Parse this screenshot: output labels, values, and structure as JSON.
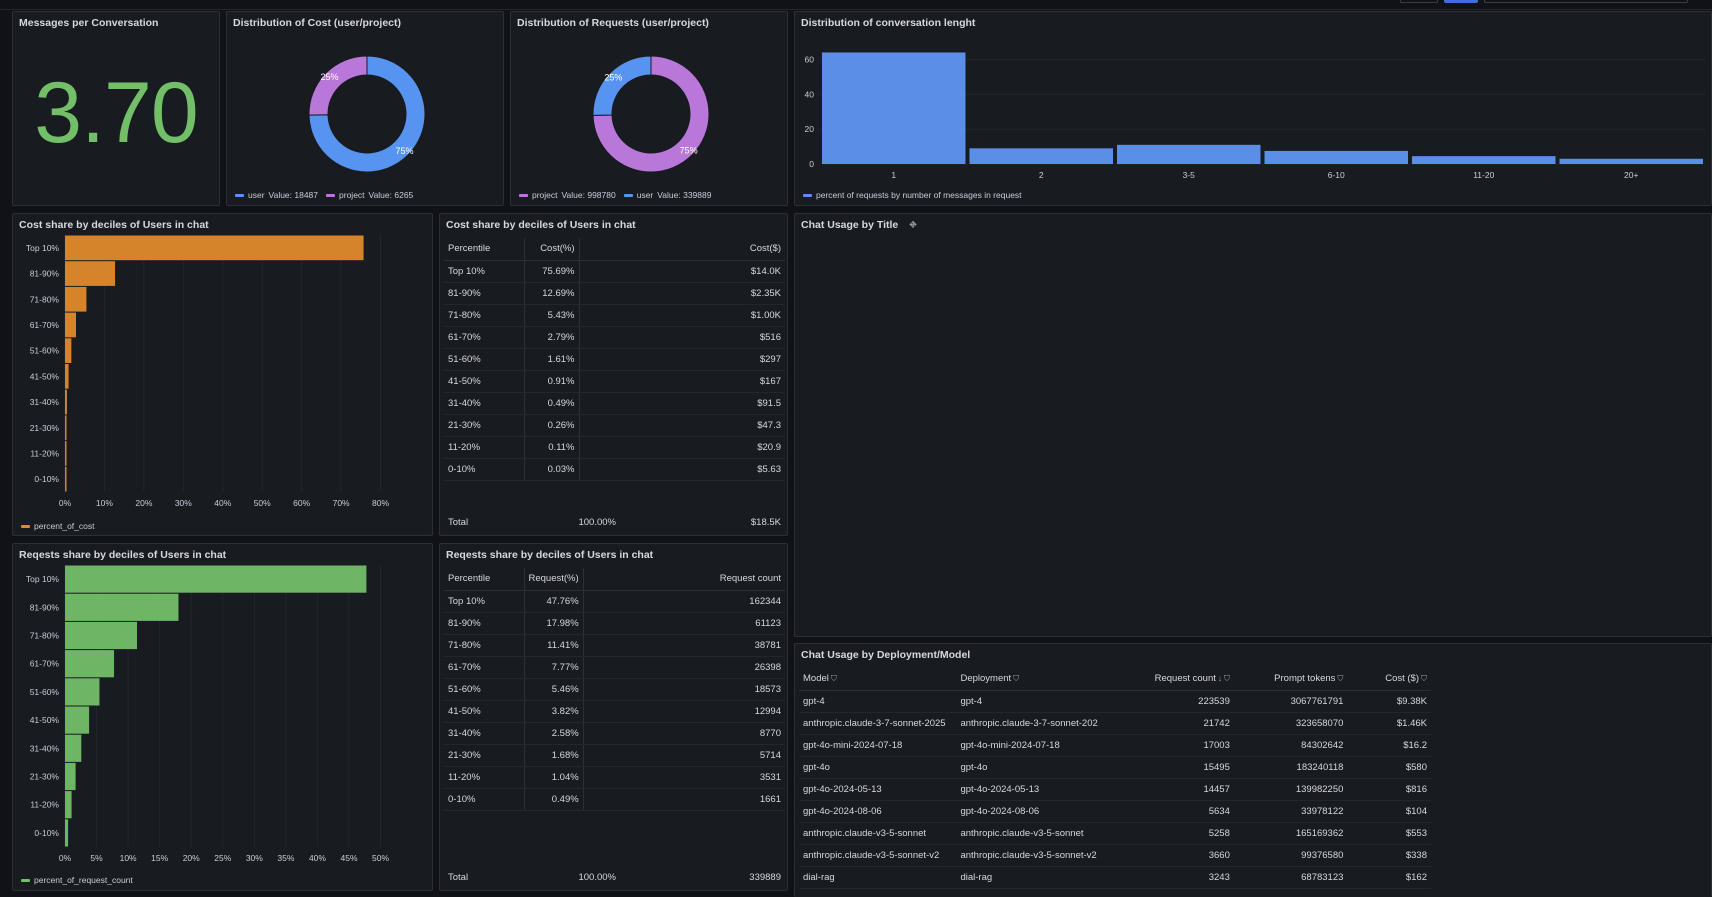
{
  "messages_per_conversation": {
    "title": "Messages per Conversation",
    "value": "3.70"
  },
  "cost_donut": {
    "title": "Distribution of Cost (user/project)",
    "slices": [
      {
        "name": "user",
        "value": 18487,
        "pct": "75%",
        "color": "#5794f2"
      },
      {
        "name": "project",
        "value": 6265,
        "pct": "25%",
        "color": "#b877d9"
      }
    ],
    "legend": [
      {
        "label": "user",
        "value_text": "Value: 18487",
        "color": "#5794f2"
      },
      {
        "label": "project",
        "value_text": "Value: 6265",
        "color": "#b877d9"
      }
    ]
  },
  "requests_donut": {
    "title": "Distribution of Requests (user/project)",
    "slices": [
      {
        "name": "project",
        "value": 998780,
        "pct": "75%",
        "color": "#b877d9"
      },
      {
        "name": "user",
        "value": 339889,
        "pct": "25%",
        "color": "#5794f2"
      }
    ],
    "legend": [
      {
        "label": "project",
        "value_text": "Value: 998780",
        "color": "#b877d9"
      },
      {
        "label": "user",
        "value_text": "Value: 339889",
        "color": "#5794f2"
      }
    ]
  },
  "conv_length": {
    "title": "Distribution of conversation lenght",
    "legend": "percent of requests by number of messages in request",
    "color": "#5b8ee6"
  },
  "cost_bar": {
    "title": "Cost share by deciles of Users in chat",
    "legend": "percent_of_cost",
    "color": "#e08a2c",
    "x_ticks": [
      "0%",
      "10%",
      "20%",
      "30%",
      "40%",
      "50%",
      "60%",
      "70%",
      "80%"
    ]
  },
  "cost_table": {
    "title": "Cost share by deciles of Users in chat",
    "headers": [
      "Percentile",
      "Cost(%)",
      "Cost($)"
    ],
    "rows": [
      [
        "Top 10%",
        "75.69%",
        "$14.0K"
      ],
      [
        "81-90%",
        "12.69%",
        "$2.35K"
      ],
      [
        "71-80%",
        "5.43%",
        "$1.00K"
      ],
      [
        "61-70%",
        "2.79%",
        "$516"
      ],
      [
        "51-60%",
        "1.61%",
        "$297"
      ],
      [
        "41-50%",
        "0.91%",
        "$167"
      ],
      [
        "31-40%",
        "0.49%",
        "$91.5"
      ],
      [
        "21-30%",
        "0.26%",
        "$47.3"
      ],
      [
        "11-20%",
        "0.11%",
        "$20.9"
      ],
      [
        "0-10%",
        "0.03%",
        "$5.63"
      ]
    ],
    "total": [
      "Total",
      "100.00%",
      "$18.5K"
    ]
  },
  "req_bar": {
    "title": "Reqests share by deciles of Users in chat",
    "legend": "percent_of_request_count",
    "color": "#73bf69",
    "x_ticks": [
      "0%",
      "5%",
      "10%",
      "15%",
      "20%",
      "25%",
      "30%",
      "35%",
      "40%",
      "45%",
      "50%"
    ]
  },
  "req_table": {
    "title": "Reqests share by deciles of Users in chat",
    "headers": [
      "Percentile",
      "Request(%)",
      "Request count"
    ],
    "rows": [
      [
        "Top 10%",
        "47.76%",
        "162344"
      ],
      [
        "81-90%",
        "17.98%",
        "61123"
      ],
      [
        "71-80%",
        "11.41%",
        "38781"
      ],
      [
        "61-70%",
        "7.77%",
        "26398"
      ],
      [
        "51-60%",
        "5.46%",
        "18573"
      ],
      [
        "41-50%",
        "3.82%",
        "12994"
      ],
      [
        "31-40%",
        "2.58%",
        "8770"
      ],
      [
        "21-30%",
        "1.68%",
        "5714"
      ],
      [
        "11-20%",
        "1.04%",
        "3531"
      ],
      [
        "0-10%",
        "0.49%",
        "1661"
      ]
    ],
    "total": [
      "Total",
      "100.00%",
      "339889"
    ]
  },
  "chat_usage_title": {
    "title": "Chat Usage by Title",
    "icon": "link-off-icon"
  },
  "deployment_table": {
    "title": "Chat Usage by Deployment/Model",
    "headers": [
      "Model",
      "Deployment",
      "Request count",
      "Prompt tokens",
      "Cost ($)"
    ],
    "sort_indicator": "↓",
    "rows": [
      [
        "gpt-4",
        "gpt-4",
        "223539",
        "3067761791",
        "$9.38K"
      ],
      [
        "anthropic.claude-3-7-sonnet-2025",
        "anthropic.claude-3-7-sonnet-202",
        "21742",
        "323658070",
        "$1.46K"
      ],
      [
        "gpt-4o-mini-2024-07-18",
        "gpt-4o-mini-2024-07-18",
        "17003",
        "84302642",
        "$16.2"
      ],
      [
        "gpt-4o",
        "gpt-4o",
        "15495",
        "183240118",
        "$580"
      ],
      [
        "gpt-4o-2024-05-13",
        "gpt-4o-2024-05-13",
        "14457",
        "139982250",
        "$816"
      ],
      [
        "gpt-4o-2024-08-06",
        "gpt-4o-2024-08-06",
        "5634",
        "33978122",
        "$104"
      ],
      [
        "anthropic.claude-v3-5-sonnet",
        "anthropic.claude-v3-5-sonnet",
        "5258",
        "165169362",
        "$553"
      ],
      [
        "anthropic.claude-v3-5-sonnet-v2",
        "anthropic.claude-v3-5-sonnet-v2",
        "3660",
        "99376580",
        "$338"
      ],
      [
        "dial-rag",
        "dial-rag",
        "3243",
        "68783123",
        "$162"
      ]
    ]
  },
  "chart_data": [
    {
      "type": "bar",
      "title": "Distribution of conversation lenght",
      "categories": [
        "1",
        "2",
        "3-5",
        "6-10",
        "11-20",
        "20+"
      ],
      "series": [
        {
          "name": "percent of requests by number of messages in request",
          "values": [
            64,
            9,
            11,
            7.5,
            4.5,
            3
          ]
        }
      ],
      "ylim": [
        0,
        70
      ],
      "y_ticks": [
        0,
        20,
        40,
        60
      ]
    },
    {
      "type": "bar",
      "orientation": "horizontal",
      "title": "Cost share by deciles of Users in chat",
      "categories": [
        "Top 10%",
        "81-90%",
        "71-80%",
        "61-70%",
        "51-60%",
        "41-50%",
        "31-40%",
        "21-30%",
        "11-20%",
        "0-10%"
      ],
      "series": [
        {
          "name": "percent_of_cost",
          "values": [
            75.69,
            12.69,
            5.43,
            2.79,
            1.61,
            0.91,
            0.49,
            0.26,
            0.11,
            0.03
          ]
        }
      ],
      "xlim": [
        0,
        80
      ]
    },
    {
      "type": "bar",
      "orientation": "horizontal",
      "title": "Reqests share by deciles of Users in chat",
      "categories": [
        "Top 10%",
        "81-90%",
        "71-80%",
        "61-70%",
        "51-60%",
        "41-50%",
        "31-40%",
        "21-30%",
        "11-20%",
        "0-10%"
      ],
      "series": [
        {
          "name": "percent_of_request_count",
          "values": [
            47.76,
            17.98,
            11.41,
            7.77,
            5.46,
            3.82,
            2.58,
            1.68,
            1.04,
            0.49
          ]
        }
      ],
      "xlim": [
        0,
        50
      ]
    },
    {
      "type": "pie",
      "title": "Distribution of Cost (user/project)",
      "categories": [
        "user",
        "project"
      ],
      "values": [
        18487,
        6265
      ]
    },
    {
      "type": "pie",
      "title": "Distribution of Requests (user/project)",
      "categories": [
        "project",
        "user"
      ],
      "values": [
        998780,
        339889
      ]
    }
  ]
}
